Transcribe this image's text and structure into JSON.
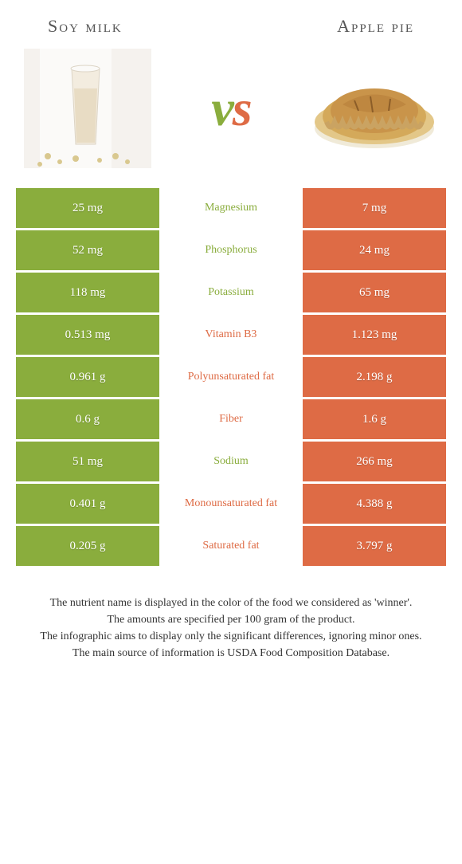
{
  "header": {
    "left_title": "Soy milk",
    "right_title": "Apple pie"
  },
  "hero": {
    "vs_text": "vs",
    "left_color": "#8aad3d",
    "right_color": "#de6b45"
  },
  "colors": {
    "left_bg": "#8aad3d",
    "right_bg": "#de6b45",
    "left_text": "#8aad3d",
    "right_text": "#de6b45"
  },
  "rows": [
    {
      "left": "25 mg",
      "label": "Magnesium",
      "right": "7 mg",
      "winner": "left"
    },
    {
      "left": "52 mg",
      "label": "Phosphorus",
      "right": "24 mg",
      "winner": "left"
    },
    {
      "left": "118 mg",
      "label": "Potassium",
      "right": "65 mg",
      "winner": "left"
    },
    {
      "left": "0.513 mg",
      "label": "Vitamin B3",
      "right": "1.123 mg",
      "winner": "right"
    },
    {
      "left": "0.961 g",
      "label": "Polyunsaturated fat",
      "right": "2.198 g",
      "winner": "right"
    },
    {
      "left": "0.6 g",
      "label": "Fiber",
      "right": "1.6 g",
      "winner": "right"
    },
    {
      "left": "51 mg",
      "label": "Sodium",
      "right": "266 mg",
      "winner": "left"
    },
    {
      "left": "0.401 g",
      "label": "Monounsaturated fat",
      "right": "4.388 g",
      "winner": "right"
    },
    {
      "left": "0.205 g",
      "label": "Saturated fat",
      "right": "3.797 g",
      "winner": "right"
    }
  ],
  "footnotes": [
    "The nutrient name is displayed in the color of the food we considered as 'winner'.",
    "The amounts are specified per 100 gram of the product.",
    "The infographic aims to display only the significant differences, ignoring minor ones.",
    "The main source of information is USDA Food Composition Database."
  ]
}
